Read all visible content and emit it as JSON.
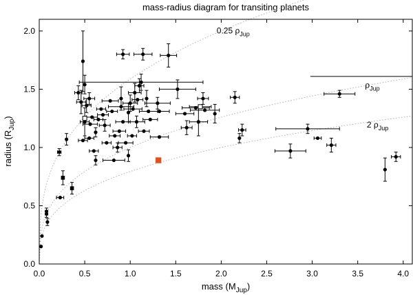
{
  "chart_data": {
    "type": "scatter",
    "title": "mass-radius diagram for transiting planets",
    "xlabel": {
      "main": "mass (M",
      "sub": "Jup",
      "close": ")"
    },
    "ylabel": {
      "main": "radius (R",
      "sub": "Jup",
      "close": ")"
    },
    "xlim": [
      0,
      4.1
    ],
    "ylim": [
      0,
      2.1
    ],
    "xticks": [
      0,
      0.5,
      1,
      1.5,
      2,
      2.5,
      3,
      3.5,
      4
    ],
    "xtick_labels": [
      "0.0",
      "0.5",
      "1.0",
      "1.5",
      "2.0",
      "2.5",
      "3.0",
      "3.5",
      "4.0"
    ],
    "yticks": [
      0,
      0.5,
      1,
      1.5,
      2
    ],
    "ytick_labels": [
      "0.0",
      "0.5",
      "1.0",
      "1.5",
      "2.0"
    ],
    "grid": false,
    "density_curves": [
      {
        "factor": 0.25,
        "pre": "0.25 ρ",
        "sub": "Jup",
        "label_x": 1.95,
        "label_y": 1.98
      },
      {
        "factor": 1,
        "pre": "ρ",
        "sub": "Jup",
        "label_x": 3.58,
        "label_y": 1.51
      },
      {
        "factor": 2,
        "pre": "2 ρ",
        "sub": "Jup",
        "label_x": 3.6,
        "label_y": 1.17
      }
    ],
    "series": [
      {
        "name": "planets",
        "marker": "circle",
        "color": "#000000",
        "points": [
          {
            "x": 0.02,
            "y": 0.15
          },
          {
            "x": 0.03,
            "y": 0.24
          },
          {
            "x": 0.08,
            "y": 0.45,
            "yerr": 0.03
          },
          {
            "x": 0.09,
            "y": 0.36,
            "yerr": 0.03
          },
          {
            "x": 0.08,
            "y": 0.43,
            "yerr": 0.03
          },
          {
            "x": 0.22,
            "y": 0.96,
            "yerr": 0.03,
            "xerr": 0.02
          },
          {
            "x": 0.23,
            "y": 0.57,
            "xerr": 0.04
          },
          {
            "x": 0.3,
            "y": 1.07,
            "yerr": 0.05
          },
          {
            "x": 0.43,
            "y": 1.47,
            "yerr": 0.06,
            "xerr": 0.04
          },
          {
            "x": 0.46,
            "y": 1.39,
            "yerr": 0.1,
            "xerr": 0.05
          },
          {
            "x": 0.48,
            "y": 1.74,
            "yerr": 0.26
          },
          {
            "x": 0.5,
            "y": 1.54,
            "yerr": 0.08
          },
          {
            "x": 0.5,
            "y": 1.22,
            "yerr": 0.12,
            "xerr": 0.05
          },
          {
            "x": 0.52,
            "y": 1.36,
            "yerr": 0.06,
            "xerr": 0.05
          },
          {
            "x": 0.55,
            "y": 1.42,
            "yerr": 0.05,
            "xerr": 0.06
          },
          {
            "x": 0.56,
            "y": 1.2,
            "xerr": 0.08
          },
          {
            "x": 0.58,
            "y": 1.26,
            "xerr": 0.06
          },
          {
            "x": 0.55,
            "y": 1.08,
            "xerr": 0.05
          },
          {
            "x": 0.6,
            "y": 0.97,
            "xerr": 0.05
          },
          {
            "x": 0.62,
            "y": 0.89,
            "yerr": 0.04
          },
          {
            "x": 0.48,
            "y": 1.06,
            "xerr": 0.05
          },
          {
            "x": 0.62,
            "y": 1.13,
            "yerr": 0.04
          },
          {
            "x": 0.65,
            "y": 1.24,
            "xerr": 0.05
          },
          {
            "x": 0.68,
            "y": 1.33,
            "xerr": 0.05
          },
          {
            "x": 0.7,
            "y": 1.28,
            "xerr": 0.06
          },
          {
            "x": 0.72,
            "y": 1.19,
            "yerr": 0.05,
            "xerr": 0.06
          },
          {
            "x": 0.74,
            "y": 1.04,
            "xerr": 0.05
          },
          {
            "x": 0.78,
            "y": 1.4,
            "xerr": 0.09
          },
          {
            "x": 0.8,
            "y": 1.31,
            "xerr": 0.06
          },
          {
            "x": 0.82,
            "y": 0.89,
            "xerr": 0.12
          },
          {
            "x": 0.83,
            "y": 1.1,
            "xerr": 0.06
          },
          {
            "x": 0.86,
            "y": 1.0,
            "yerr": 0.04,
            "xerr": 0.05
          },
          {
            "x": 0.88,
            "y": 1.14,
            "xerr": 0.07
          },
          {
            "x": 0.9,
            "y": 1.35,
            "xerr": 0.14
          },
          {
            "x": 0.92,
            "y": 1.22,
            "xerr": 0.08
          },
          {
            "x": 0.95,
            "y": 1.04,
            "xerr": 0.08
          },
          {
            "x": 0.98,
            "y": 0.93,
            "yerr": 0.05
          },
          {
            "x": 0.92,
            "y": 1.8,
            "yerr": 0.04,
            "xerr": 0.07
          },
          {
            "x": 0.9,
            "y": 1.42,
            "yerr": 0.1
          },
          {
            "x": 0.98,
            "y": 1.3,
            "yerr": 0.08
          },
          {
            "x": 1.0,
            "y": 1.38,
            "yerr": 0.07,
            "xerr": 0.08
          },
          {
            "x": 1.02,
            "y": 1.1,
            "xerr": 0.05
          },
          {
            "x": 1.03,
            "y": 1.33,
            "xerr": 0.1
          },
          {
            "x": 1.05,
            "y": 1.47,
            "yerr": 0.08,
            "xerr": 0.07
          },
          {
            "x": 1.07,
            "y": 1.22,
            "yerr": 0.05,
            "xerr": 0.09
          },
          {
            "x": 1.08,
            "y": 1.41,
            "xerr": 0.06
          },
          {
            "x": 1.1,
            "y": 1.53,
            "yerr": 0.06,
            "xerr": 0.05
          },
          {
            "x": 1.12,
            "y": 1.56,
            "yerr": 0.07,
            "xerr": 0.68
          },
          {
            "x": 1.14,
            "y": 1.8,
            "yerr": 0.05,
            "xerr": 0.1
          },
          {
            "x": 1.15,
            "y": 1.14,
            "xerr": 0.06
          },
          {
            "x": 1.18,
            "y": 1.42,
            "yerr": 0.07
          },
          {
            "x": 1.2,
            "y": 1.31,
            "xerr": 0.1
          },
          {
            "x": 1.22,
            "y": 1.24,
            "xerr": 0.08
          },
          {
            "x": 1.3,
            "y": 1.38,
            "yerr": 0.05,
            "xerr": 0.14
          },
          {
            "x": 1.32,
            "y": 1.09,
            "xerr": 0.1
          },
          {
            "x": 1.32,
            "y": 1.31,
            "xerr": 0.11
          },
          {
            "x": 1.42,
            "y": 1.79,
            "yerr": 0.1,
            "xerr": 0.09
          },
          {
            "x": 1.52,
            "y": 1.5,
            "yerr": 0.08,
            "xerr": 0.2
          },
          {
            "x": 1.6,
            "y": 1.29,
            "xerr": 0.1
          },
          {
            "x": 1.62,
            "y": 1.17,
            "yerr": 0.06,
            "xerr": 0.06
          },
          {
            "x": 1.72,
            "y": 1.34,
            "xerr": 0.15
          },
          {
            "x": 1.75,
            "y": 1.22,
            "yerr": 0.12,
            "xerr": 0.1
          },
          {
            "x": 1.77,
            "y": 1.35,
            "xerr": 0.12
          },
          {
            "x": 1.8,
            "y": 1.42,
            "yerr": 0.05,
            "xerr": 0.06
          },
          {
            "x": 1.82,
            "y": 1.32,
            "xerr": 0.16
          },
          {
            "x": 1.93,
            "y": 1.29,
            "yerr": 0.08
          },
          {
            "x": 2.15,
            "y": 1.43,
            "yerr": 0.05,
            "xerr": 0.05
          },
          {
            "x": 2.2,
            "y": 1.08,
            "yerr": 0.04
          },
          {
            "x": 2.23,
            "y": 1.15,
            "yerr": 0.05,
            "xerr": 0.04
          },
          {
            "x": 2.76,
            "y": 0.97,
            "yerr": 0.06,
            "xerr": 0.17
          },
          {
            "x": 2.95,
            "y": 1.16,
            "yerr": 0.04,
            "xerr": 0.35
          },
          {
            "x": 3.06,
            "y": 1.08,
            "xerr": 0.04
          },
          {
            "x": 3.21,
            "y": 1.02,
            "yerr": 0.06,
            "xerr": 0.05
          },
          {
            "x": 3.3,
            "y": 1.46,
            "yerr": 0.03,
            "xerr": 0.17
          },
          {
            "x": 3.8,
            "y": 0.81,
            "yerr": 0.1
          },
          {
            "x": 3.92,
            "y": 0.92,
            "yerr": 0.04,
            "xerr": 0.05
          }
        ]
      },
      {
        "name": "squares",
        "marker": "square",
        "color": "#000000",
        "points": [
          {
            "x": 0.26,
            "y": 0.74,
            "yerr": 0.06
          },
          {
            "x": 0.36,
            "y": 0.65,
            "yerr": 0.05
          }
        ]
      },
      {
        "name": "highlighted planet",
        "marker": "square",
        "color": "#e8501a",
        "points": [
          {
            "x": 1.31,
            "y": 0.89
          }
        ]
      },
      {
        "name": "open squares",
        "marker": "open-square",
        "color": "#000000",
        "points": [
          {
            "x": 0.5,
            "y": 1.25
          },
          {
            "x": 1.77,
            "y": 1.35
          }
        ]
      }
    ],
    "annotations": [
      {
        "type": "hline",
        "y": 1.61,
        "x_start": 2.98,
        "x_end": 4.1
      }
    ]
  }
}
